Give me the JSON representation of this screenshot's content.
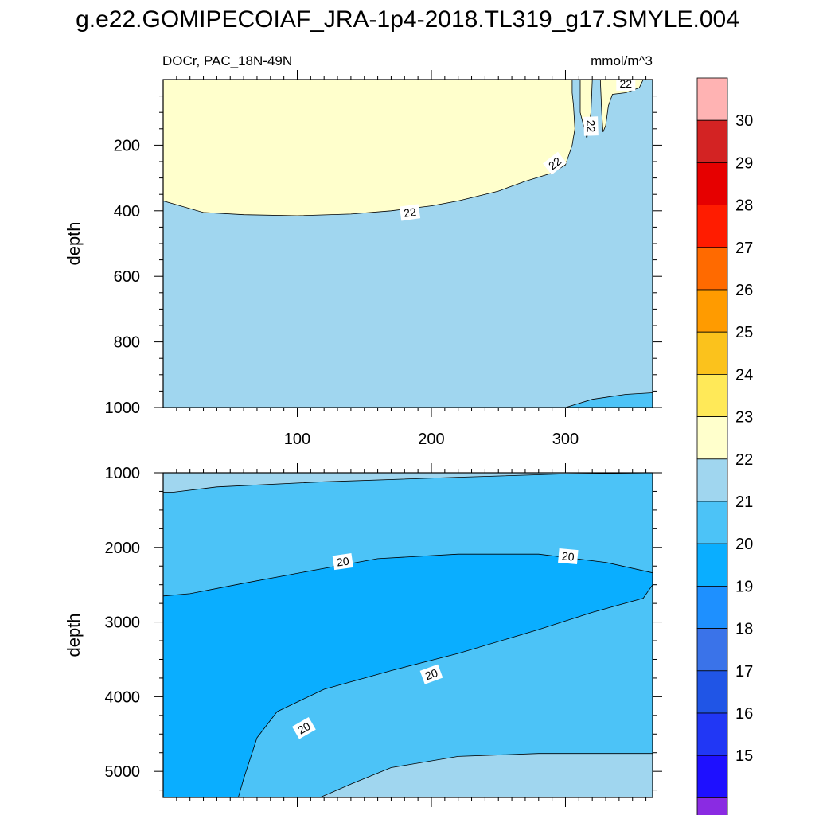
{
  "title": "g.e22.GOMIPECOIAF_JRA-1p4-2018.TL319_g17.SMYLE.004",
  "chart_data": {
    "type": "contour",
    "left_label": "DOCr, PAC_18N-49N",
    "right_label": "mmol/m^3",
    "x_axis": {
      "range": [
        0,
        365
      ],
      "ticks": [
        100,
        200,
        300
      ]
    },
    "panels": [
      {
        "name": "upper",
        "ylabel": "depth",
        "y_range": [
          0,
          1000
        ],
        "y_inverted": true,
        "y_ticks": [
          200,
          400,
          600,
          800,
          1000
        ],
        "bottom_tick_labels": true,
        "regions": [
          {
            "level": "21-22",
            "polygon": [
              [
                0,
                0
              ],
              [
                365,
                0
              ],
              [
                365,
                1000
              ],
              [
                0,
                1000
              ]
            ]
          },
          {
            "level": "22-23",
            "polygon": [
              [
                0,
                0
              ],
              [
                305,
                0
              ],
              [
                305,
                40
              ],
              [
                306,
                80
              ],
              [
                307,
                150
              ],
              [
                305,
                200
              ],
              [
                300,
                260
              ],
              [
                290,
                285
              ],
              [
                270,
                310
              ],
              [
                250,
                340
              ],
              [
                220,
                370
              ],
              [
                200,
                385
              ],
              [
                170,
                400
              ],
              [
                140,
                410
              ],
              [
                100,
                415
              ],
              [
                60,
                412
              ],
              [
                30,
                405
              ],
              [
                0,
                370
              ]
            ]
          },
          {
            "level": "22-23",
            "polygon": [
              [
                311,
                0
              ],
              [
                320,
                0
              ],
              [
                319,
                100
              ],
              [
                316,
                180
              ],
              [
                311,
                100
              ]
            ]
          },
          {
            "level": "22-23",
            "polygon": [
              [
                326,
                0
              ],
              [
                358,
                0
              ],
              [
                355,
                25
              ],
              [
                345,
                40
              ],
              [
                335,
                45
              ],
              [
                332,
                80
              ],
              [
                330,
                140
              ],
              [
                328,
                160
              ],
              [
                327,
                100
              ]
            ]
          },
          {
            "level": "20-21",
            "polygon": [
              [
                300,
                1000
              ],
              [
                320,
                975
              ],
              [
                345,
                960
              ],
              [
                365,
                955
              ],
              [
                365,
                1000
              ]
            ]
          }
        ],
        "contour_labels": [
          {
            "text": "22",
            "x": 184,
            "y": 405,
            "rotation": -8
          },
          {
            "text": "22",
            "x": 292,
            "y": 255,
            "rotation": -38
          },
          {
            "text": "22",
            "x": 319,
            "y": 142,
            "rotation": 88
          },
          {
            "text": "22",
            "x": 345,
            "y": 12,
            "rotation": 0
          }
        ]
      },
      {
        "name": "lower",
        "ylabel": "depth",
        "y_range": [
          1000,
          5350
        ],
        "y_inverted": true,
        "y_ticks": [
          1000,
          2000,
          3000,
          4000,
          5000
        ],
        "bottom_tick_labels": false,
        "regions": [
          {
            "level": "21-22",
            "polygon": [
              [
                0,
                1000
              ],
              [
                365,
                1000
              ],
              [
                365,
                5350
              ],
              [
                0,
                5350
              ]
            ]
          },
          {
            "level": "20-21",
            "polygon": [
              [
                0,
                1260
              ],
              [
                8,
                1260
              ],
              [
                40,
                1190
              ],
              [
                120,
                1120
              ],
              [
                220,
                1060
              ],
              [
                300,
                1015
              ],
              [
                365,
                1000
              ],
              [
                365,
                5350
              ],
              [
                0,
                5350
              ]
            ]
          },
          {
            "level": "21-22",
            "polygon": [
              [
                117,
                5350
              ],
              [
                140,
                5170
              ],
              [
                170,
                4950
              ],
              [
                220,
                4800
              ],
              [
                280,
                4760
              ],
              [
                365,
                4760
              ],
              [
                365,
                5350
              ]
            ]
          },
          {
            "level": "19-20",
            "polygon": [
              [
                0,
                2650
              ],
              [
                20,
                2620
              ],
              [
                60,
                2480
              ],
              [
                120,
                2280
              ],
              [
                160,
                2150
              ],
              [
                220,
                2090
              ],
              [
                280,
                2090
              ],
              [
                330,
                2200
              ],
              [
                365,
                2340
              ],
              [
                365,
                2500
              ],
              [
                358,
                2680
              ],
              [
                320,
                2870
              ],
              [
                280,
                3100
              ],
              [
                220,
                3420
              ],
              [
                170,
                3650
              ],
              [
                120,
                3900
              ],
              [
                85,
                4200
              ],
              [
                70,
                4550
              ],
              [
                60,
                5100
              ],
              [
                56,
                5350
              ],
              [
                0,
                5350
              ]
            ]
          }
        ],
        "contour_labels": [
          {
            "text": "20",
            "x": 134,
            "y": 2190,
            "rotation": -8
          },
          {
            "text": "20",
            "x": 302,
            "y": 2120,
            "rotation": 5
          },
          {
            "text": "20",
            "x": 200,
            "y": 3700,
            "rotation": -20
          },
          {
            "text": "20",
            "x": 105,
            "y": 4420,
            "rotation": -30
          }
        ]
      }
    ],
    "colorbar": {
      "tick_labels": [
        "15",
        "16",
        "17",
        "18",
        "19",
        "20",
        "21",
        "22",
        "23",
        "24",
        "25",
        "26",
        "27",
        "28",
        "29",
        "30"
      ],
      "colors": [
        "#8a2be2",
        "#1e10ff",
        "#2137f5",
        "#2055e6",
        "#3a73e9",
        "#1e90ff",
        "#0aaeff",
        "#4cc3f7",
        "#a0d6ef",
        "#ffffcc",
        "#ffe958",
        "#fbc21c",
        "#ff9b00",
        "#ff6a00",
        "#ff1c00",
        "#e60000",
        "#d32323",
        "#ffb3b3"
      ]
    },
    "level_colors": {
      "19-20": "#0aaeff",
      "20-21": "#4cc3f7",
      "21-22": "#a0d6ef",
      "22-23": "#ffffcc"
    }
  }
}
